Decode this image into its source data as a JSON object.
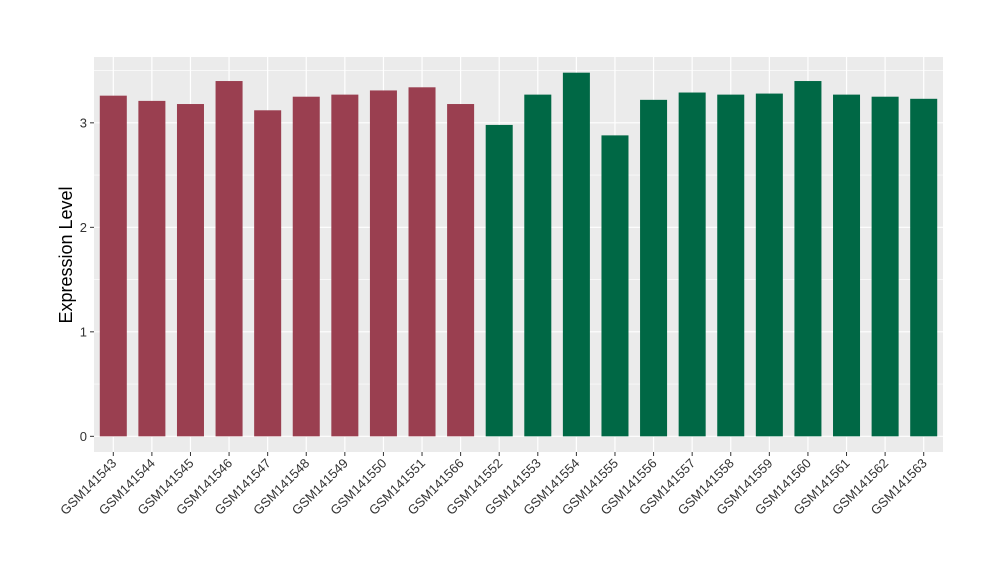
{
  "chart_data": {
    "type": "bar",
    "title": "",
    "xlabel": "",
    "ylabel": "Expression Level",
    "ylim": [
      -0.15,
      3.63
    ],
    "yticks": [
      0,
      1,
      2,
      3
    ],
    "grid": true,
    "legend": "none",
    "categories": [
      "GSM141543",
      "GSM141544",
      "GSM141545",
      "GSM141546",
      "GSM141547",
      "GSM141548",
      "GSM141549",
      "GSM141550",
      "GSM141551",
      "GSM141566",
      "GSM141552",
      "GSM141553",
      "GSM141554",
      "GSM141555",
      "GSM141556",
      "GSM141557",
      "GSM141558",
      "GSM141559",
      "GSM141560",
      "GSM141561",
      "GSM141562",
      "GSM141563"
    ],
    "values": [
      3.26,
      3.21,
      3.18,
      3.4,
      3.12,
      3.25,
      3.27,
      3.31,
      3.34,
      3.18,
      2.98,
      3.27,
      3.48,
      2.88,
      3.22,
      3.29,
      3.27,
      3.28,
      3.4,
      3.27,
      3.25,
      3.23
    ],
    "groups": [
      "a",
      "a",
      "a",
      "a",
      "a",
      "a",
      "a",
      "a",
      "a",
      "a",
      "b",
      "b",
      "b",
      "b",
      "b",
      "b",
      "b",
      "b",
      "b",
      "b",
      "b",
      "b"
    ],
    "colors": {
      "a": "#9A3F50",
      "b": "#006845"
    },
    "panel_background": "#EBEBEB",
    "grid_color": "#FFFFFF"
  }
}
